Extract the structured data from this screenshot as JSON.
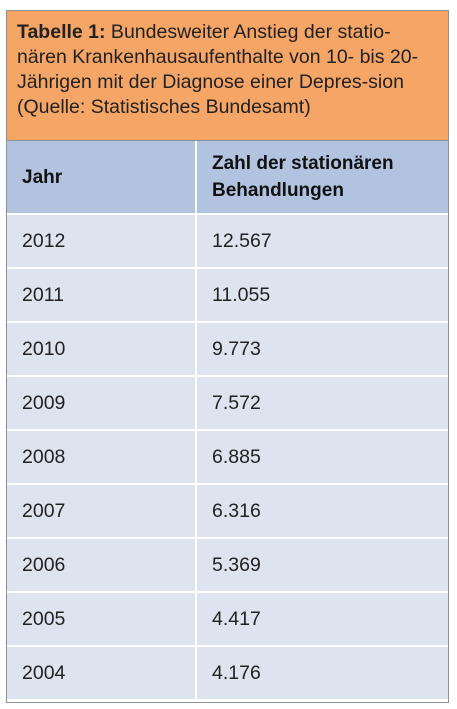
{
  "caption": {
    "label": "Tabelle 1:",
    "text": " Bundesweiter Anstieg der statio-nären Krankenhausaufenthalte von 10- bis 20-Jährigen mit der Diagnose einer Depres-sion (Quelle: Statistisches Bundesamt)"
  },
  "table": {
    "headers": [
      "Jahr",
      "Zahl der stationären Behandlungen"
    ],
    "rows": [
      [
        "2012",
        "12.567"
      ],
      [
        "2011",
        "11.055"
      ],
      [
        "2010",
        "9.773"
      ],
      [
        "2009",
        "7.572"
      ],
      [
        "2008",
        "6.885"
      ],
      [
        "2007",
        "6.316"
      ],
      [
        "2006",
        "5.369"
      ],
      [
        "2005",
        "4.417"
      ],
      [
        "2004",
        "4.176"
      ]
    ]
  },
  "colors": {
    "caption_bg": "#f5a566",
    "header_bg": "#b2c3e0",
    "row_bg": "#dde3ef"
  }
}
